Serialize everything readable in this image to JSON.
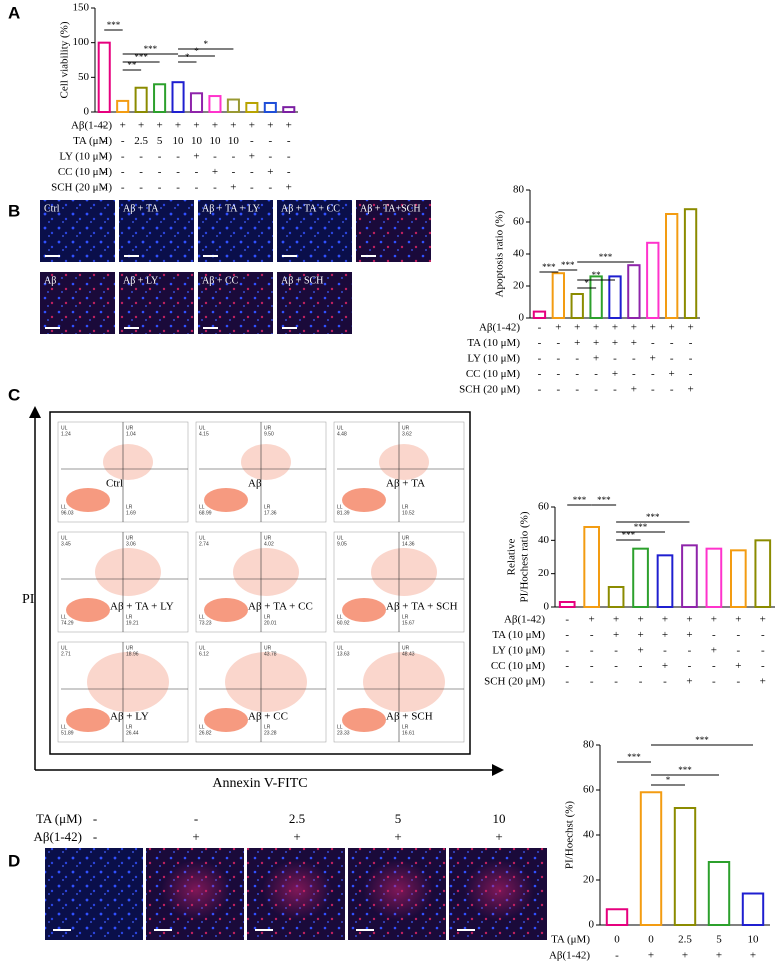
{
  "chart_data": [
    {
      "type": "bar",
      "panel": "A",
      "ylabel": "Cell viability (%)",
      "ylim": [
        0,
        150
      ],
      "yticks": [
        0,
        50,
        100,
        150
      ],
      "values": [
        100,
        16,
        35,
        40,
        43,
        27,
        23,
        18,
        13,
        13,
        7
      ],
      "colors": [
        "#e6007e",
        "#f39c12",
        "#8b8b00",
        "#2ca02c",
        "#1f1fd0",
        "#8e24aa",
        "#ff33cc",
        "#999933",
        "#b8a300",
        "#1f4ed8",
        "#7b1fa2"
      ],
      "conditions": [
        {
          "label": "Aβ(1-42)",
          "values": [
            "-",
            "+",
            "+",
            "+",
            "+",
            "+",
            "+",
            "+",
            "+",
            "+",
            "+"
          ]
        },
        {
          "label": "TA (μM)",
          "values": [
            "-",
            "-",
            "2.5",
            "5",
            "10",
            "10",
            "10",
            "10",
            "-",
            "-",
            "-"
          ]
        },
        {
          "label": "LY (10 μM)",
          "values": [
            "-",
            "-",
            "-",
            "-",
            "-",
            "+",
            "-",
            "-",
            "+",
            "-",
            "-"
          ]
        },
        {
          "label": "CC (10 μM)",
          "values": [
            "-",
            "-",
            "-",
            "-",
            "-",
            "-",
            "+",
            "-",
            "-",
            "+",
            "-"
          ]
        },
        {
          "label": "SCH (20 μM)",
          "values": [
            "-",
            "-",
            "-",
            "-",
            "-",
            "-",
            "-",
            "+",
            "-",
            "-",
            "+"
          ]
        }
      ],
      "significance": [
        "***",
        "**",
        "***",
        "***",
        "*",
        "*",
        "*"
      ]
    },
    {
      "type": "bar",
      "panel": "B",
      "ylabel": "Apoptosis ratio (%)",
      "ylim": [
        0,
        80
      ],
      "yticks": [
        0,
        20,
        40,
        60,
        80
      ],
      "values": [
        4,
        28,
        15,
        26,
        26,
        33,
        47,
        65,
        68
      ],
      "colors": [
        "#e6007e",
        "#f39c12",
        "#8b8b00",
        "#2ca02c",
        "#1f1fd0",
        "#8e24aa",
        "#ff33cc",
        "#f39c12",
        "#8b8b00"
      ],
      "conditions": [
        {
          "label": "Aβ(1-42)",
          "values": [
            "-",
            "+",
            "+",
            "+",
            "+",
            "+",
            "+",
            "+",
            "+"
          ]
        },
        {
          "label": "TA (10 μM)",
          "values": [
            "-",
            "-",
            "+",
            "+",
            "+",
            "+",
            "-",
            "-",
            "-"
          ]
        },
        {
          "label": "LY (10 μM)",
          "values": [
            "-",
            "-",
            "-",
            "+",
            "-",
            "-",
            "+",
            "-",
            "-"
          ]
        },
        {
          "label": "CC (10 μM)",
          "values": [
            "-",
            "-",
            "-",
            "-",
            "+",
            "-",
            "-",
            "+",
            "-"
          ]
        },
        {
          "label": "SCH (20 μM)",
          "values": [
            "-",
            "-",
            "-",
            "-",
            "-",
            "+",
            "-",
            "-",
            "+"
          ]
        }
      ],
      "significance": [
        "***",
        "***",
        "*",
        "**",
        "***"
      ]
    },
    {
      "type": "bar",
      "panel": "C",
      "ylabel": [
        "Relative",
        "PI/Hochest ratio (%)"
      ],
      "ylim": [
        0,
        60
      ],
      "yticks": [
        0,
        20,
        40,
        60
      ],
      "values": [
        3,
        48,
        12,
        35,
        31,
        37,
        35,
        34,
        40
      ],
      "colors": [
        "#e6007e",
        "#f39c12",
        "#8b8b00",
        "#2ca02c",
        "#1f1fd0",
        "#8e24aa",
        "#ff33cc",
        "#f39c12",
        "#8b8b00"
      ],
      "conditions": [
        {
          "label": "Aβ(1-42)",
          "values": [
            "-",
            "+",
            "+",
            "+",
            "+",
            "+",
            "+",
            "+",
            "+"
          ]
        },
        {
          "label": "TA (10 μM)",
          "values": [
            "-",
            "-",
            "+",
            "+",
            "+",
            "+",
            "-",
            "-",
            "-"
          ]
        },
        {
          "label": "LY (10 μM)",
          "values": [
            "-",
            "-",
            "-",
            "+",
            "-",
            "-",
            "+",
            "-",
            "-"
          ]
        },
        {
          "label": "CC (10 μM)",
          "values": [
            "-",
            "-",
            "-",
            "-",
            "+",
            "-",
            "-",
            "+",
            "-"
          ]
        },
        {
          "label": "SCH (20 μM)",
          "values": [
            "-",
            "-",
            "-",
            "-",
            "-",
            "+",
            "-",
            "-",
            "+"
          ]
        }
      ],
      "significance": [
        "***",
        "***",
        "***",
        "***",
        "***"
      ]
    },
    {
      "type": "bar",
      "panel": "D",
      "ylabel": "PI/Hoechst (%)",
      "ylim": [
        0,
        80
      ],
      "yticks": [
        0,
        20,
        40,
        60,
        80
      ],
      "values": [
        7,
        59,
        52,
        28,
        14
      ],
      "colors": [
        "#e6007e",
        "#f39c12",
        "#8b8b00",
        "#2ca02c",
        "#1f1fd0"
      ],
      "conditions": [
        {
          "label": "TA (μM)",
          "values": [
            "0",
            "0",
            "2.5",
            "5",
            "10"
          ]
        },
        {
          "label": "Aβ(1-42)",
          "values": [
            "-",
            "+",
            "+",
            "+",
            "+"
          ]
        }
      ],
      "significance": [
        "***",
        "*",
        "***",
        "***"
      ]
    }
  ],
  "images_b": [
    "Ctrl",
    "Aβ + TA",
    "Aβ + TA + LY",
    "Aβ + TA + CC",
    "Aβ + TA+SCH",
    "Aβ",
    "Aβ + LY",
    "Aβ + CC",
    "Aβ + SCH"
  ],
  "flow": {
    "y_label": "PI",
    "x_label": "Annexin V-FITC",
    "quadrants": [
      "UL",
      "UR",
      "LL",
      "LR"
    ],
    "plots": [
      {
        "label": "Ctrl",
        "values": [
          "1.24",
          "1.04",
          "96.03",
          "1.69"
        ]
      },
      {
        "label": "Aβ",
        "values": [
          "4.15",
          "9.50",
          "68.99",
          "17.36"
        ]
      },
      {
        "label": "Aβ + TA",
        "values": [
          "4.48",
          "3.62",
          "81.39",
          "10.52"
        ]
      },
      {
        "label": "Aβ + TA + LY",
        "values": [
          "3.45",
          "3.06",
          "74.29",
          "19.21"
        ]
      },
      {
        "label": "Aβ + TA + CC",
        "values": [
          "2.74",
          "4.02",
          "73.23",
          "20.01"
        ]
      },
      {
        "label": "Aβ + TA + SCH",
        "values": [
          "9.05",
          "14.36",
          "60.92",
          "15.67"
        ]
      },
      {
        "label": "Aβ + LY",
        "values": [
          "2.71",
          "18.96",
          "51.89",
          "26.44"
        ]
      },
      {
        "label": "Aβ + CC",
        "values": [
          "6.12",
          "43.78",
          "26.82",
          "23.28"
        ]
      },
      {
        "label": "Aβ + SCH",
        "values": [
          "13.63",
          "48.43",
          "23.33",
          "16.61"
        ]
      }
    ]
  },
  "images_d": {
    "rows": [
      {
        "label": "TA (μM)",
        "values": [
          "-",
          "-",
          "2.5",
          "5",
          "10"
        ]
      },
      {
        "label": "Aβ(1-42)",
        "values": [
          "-",
          "+",
          "+",
          "+",
          "+"
        ]
      }
    ]
  }
}
